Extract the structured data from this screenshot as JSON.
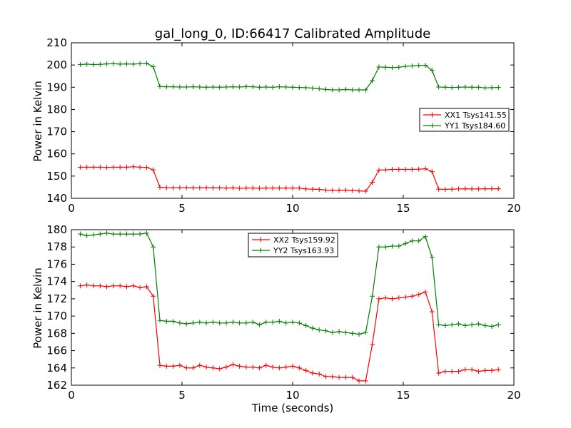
{
  "colors": {
    "red": "#ff0000",
    "green": "#008000",
    "axis": "#000000",
    "background": "#ffffff"
  },
  "chart_data": [
    {
      "type": "line",
      "title": "gal_long_0, ID:66417 Calibrated Amplitude",
      "xlabel": "",
      "ylabel": "Power in Kelvin",
      "xlim": [
        0,
        20
      ],
      "ylim": [
        140,
        210
      ],
      "xticks": [
        0,
        5,
        10,
        15,
        20
      ],
      "yticks": [
        140,
        150,
        160,
        170,
        180,
        190,
        200,
        210
      ],
      "grid": false,
      "legend": "center-right",
      "x": [
        0.4,
        0.7,
        1.0,
        1.3,
        1.6,
        1.9,
        2.2,
        2.5,
        2.8,
        3.1,
        3.4,
        3.7,
        4.0,
        4.3,
        4.6,
        4.9,
        5.2,
        5.5,
        5.8,
        6.1,
        6.4,
        6.7,
        7.0,
        7.3,
        7.6,
        7.9,
        8.2,
        8.5,
        8.8,
        9.1,
        9.4,
        9.7,
        10.0,
        10.3,
        10.6,
        10.9,
        11.2,
        11.5,
        11.8,
        12.1,
        12.4,
        12.7,
        13.0,
        13.3,
        13.6,
        13.9,
        14.2,
        14.5,
        14.8,
        15.1,
        15.4,
        15.7,
        16.0,
        16.3,
        16.6,
        16.9,
        17.2,
        17.5,
        17.8,
        18.1,
        18.4,
        18.7,
        19.0,
        19.3
      ],
      "series": [
        {
          "name": "XX1 Tsys141.55",
          "color": "#ff0000",
          "values": [
            154.0,
            154.0,
            154.0,
            154.0,
            153.9,
            154.0,
            154.0,
            154.0,
            154.2,
            154.0,
            153.9,
            152.8,
            145.0,
            144.8,
            144.8,
            144.8,
            144.8,
            144.7,
            144.7,
            144.8,
            144.7,
            144.7,
            144.6,
            144.7,
            144.5,
            144.6,
            144.6,
            144.5,
            144.6,
            144.6,
            144.6,
            144.6,
            144.6,
            144.6,
            144.2,
            144.1,
            144.0,
            143.7,
            143.6,
            143.6,
            143.7,
            143.5,
            143.3,
            143.2,
            147.2,
            152.7,
            152.8,
            153.0,
            153.0,
            153.0,
            153.0,
            153.1,
            153.3,
            152.0,
            144.1,
            144.0,
            144.1,
            144.2,
            144.3,
            144.2,
            144.2,
            144.3,
            144.3,
            144.3
          ]
        },
        {
          "name": "YY1 Tsys184.60",
          "color": "#008000",
          "values": [
            200.2,
            200.4,
            200.2,
            200.3,
            200.5,
            200.6,
            200.4,
            200.5,
            200.4,
            200.6,
            200.8,
            199.2,
            190.3,
            190.2,
            190.2,
            190.1,
            190.1,
            190.2,
            190.1,
            190.0,
            190.1,
            190.0,
            190.1,
            190.2,
            190.1,
            190.3,
            190.2,
            190.0,
            190.1,
            190.0,
            190.2,
            190.1,
            190.0,
            189.9,
            189.8,
            189.6,
            189.3,
            189.0,
            188.8,
            188.8,
            189.0,
            188.8,
            188.8,
            188.8,
            193.0,
            199.1,
            199.0,
            198.9,
            199.0,
            199.4,
            199.6,
            199.8,
            199.9,
            197.6,
            190.1,
            190.0,
            189.9,
            190.0,
            190.1,
            190.0,
            190.0,
            189.7,
            189.8,
            189.9
          ]
        }
      ]
    },
    {
      "type": "line",
      "title": "",
      "xlabel": "Time (seconds)",
      "ylabel": "Power in Kelvin",
      "xlim": [
        0,
        20
      ],
      "ylim": [
        162,
        180
      ],
      "xticks": [
        0,
        5,
        10,
        15,
        20
      ],
      "yticks": [
        162,
        164,
        166,
        168,
        170,
        172,
        174,
        176,
        178,
        180
      ],
      "grid": false,
      "legend": "top-center",
      "x": [
        0.4,
        0.7,
        1.0,
        1.3,
        1.6,
        1.9,
        2.2,
        2.5,
        2.8,
        3.1,
        3.4,
        3.7,
        4.0,
        4.3,
        4.6,
        4.9,
        5.2,
        5.5,
        5.8,
        6.1,
        6.4,
        6.7,
        7.0,
        7.3,
        7.6,
        7.9,
        8.2,
        8.5,
        8.8,
        9.1,
        9.4,
        9.7,
        10.0,
        10.3,
        10.6,
        10.9,
        11.2,
        11.5,
        11.8,
        12.1,
        12.4,
        12.7,
        13.0,
        13.3,
        13.6,
        13.9,
        14.2,
        14.5,
        14.8,
        15.1,
        15.4,
        15.7,
        16.0,
        16.3,
        16.6,
        16.9,
        17.2,
        17.5,
        17.8,
        18.1,
        18.4,
        18.7,
        19.0,
        19.3
      ],
      "series": [
        {
          "name": "XX2 Tsys159.92",
          "color": "#ff0000",
          "values": [
            173.5,
            173.6,
            173.5,
            173.5,
            173.4,
            173.5,
            173.5,
            173.4,
            173.5,
            173.3,
            173.4,
            172.3,
            164.3,
            164.2,
            164.2,
            164.3,
            164.0,
            164.0,
            164.3,
            164.1,
            164.0,
            163.9,
            164.1,
            164.4,
            164.2,
            164.1,
            164.1,
            164.0,
            164.3,
            164.1,
            164.0,
            164.1,
            164.2,
            164.0,
            163.7,
            163.4,
            163.3,
            163.0,
            163.0,
            162.9,
            162.9,
            162.9,
            162.5,
            162.5,
            166.7,
            172.0,
            172.1,
            172.0,
            172.1,
            172.2,
            172.3,
            172.5,
            172.8,
            170.5,
            163.4,
            163.6,
            163.6,
            163.6,
            163.8,
            163.8,
            163.6,
            163.7,
            163.7,
            163.8
          ]
        },
        {
          "name": "YY2 Tsys163.93",
          "color": "#008000",
          "values": [
            179.5,
            179.3,
            179.4,
            179.5,
            179.6,
            179.5,
            179.5,
            179.5,
            179.5,
            179.5,
            179.6,
            178.0,
            169.5,
            169.4,
            169.4,
            169.2,
            169.1,
            169.2,
            169.3,
            169.2,
            169.3,
            169.2,
            169.2,
            169.3,
            169.2,
            169.2,
            169.3,
            169.0,
            169.3,
            169.3,
            169.4,
            169.2,
            169.3,
            169.2,
            168.9,
            168.6,
            168.4,
            168.3,
            168.1,
            168.2,
            168.1,
            168.0,
            167.9,
            168.1,
            172.3,
            178.0,
            178.0,
            178.1,
            178.1,
            178.4,
            178.7,
            178.7,
            179.2,
            176.8,
            169.0,
            168.9,
            169.0,
            169.1,
            168.9,
            169.0,
            169.1,
            168.9,
            168.8,
            169.0
          ]
        }
      ]
    }
  ]
}
